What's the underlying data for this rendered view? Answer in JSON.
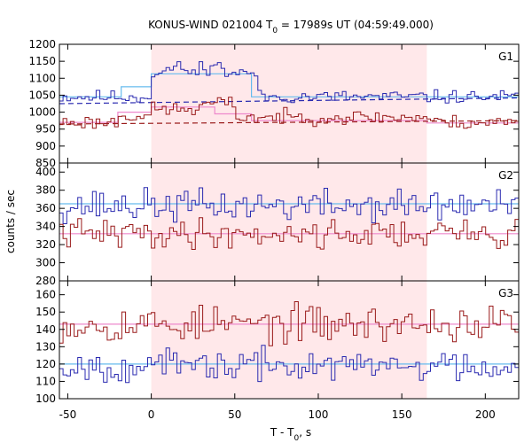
{
  "chart_data": {
    "type": "line",
    "title": {
      "main": "KONUS-WIND 021004 T",
      "sub": "0",
      "rest": " = 17989s UT (04:59:49.000)"
    },
    "xlabel": {
      "main": "T - T",
      "sub": "0",
      "rest": ", s"
    },
    "ylabel": "counts / sec",
    "xlim": [
      -55,
      220
    ],
    "xticks": [
      -50,
      0,
      50,
      100,
      150,
      200
    ],
    "highlight_interval": [
      0,
      165
    ],
    "colors": {
      "high_band": "#9a1b1b",
      "low_band": "#2a2ab0",
      "high_fit": "#ee88cc",
      "low_fit": "#66bbee",
      "shade": "#ffe8ea"
    },
    "panels": [
      {
        "label": "G1",
        "ylim": [
          850,
          1200
        ],
        "yticks": [
          850,
          900,
          950,
          1000,
          1050,
          1100,
          1150,
          1200
        ],
        "series": [
          {
            "seed": 11,
            "base": 1045,
            "noise": 12,
            "color_key": "low_band",
            "bumps": [
              {
                "t0": 0,
                "t1": 62,
                "amp": 70
              },
              {
                "t0": 8,
                "t1": 22,
                "amp": 15
              },
              {
                "t0": 28,
                "t1": 42,
                "amp": 20
              }
            ]
          },
          {
            "seed": 23,
            "base": 970,
            "noise": 13,
            "color_key": "high_band",
            "bumps": [
              {
                "t0": -20,
                "t1": 0,
                "amp": 20
              },
              {
                "t0": 0,
                "t1": 30,
                "amp": 38
              },
              {
                "t0": 30,
                "t1": 50,
                "amp": 55
              },
              {
                "t0": 50,
                "t1": 165,
                "amp": 15
              }
            ]
          }
        ],
        "fits": [
          {
            "color_key": "low_fit",
            "steps": [
              [
                -55,
                1045
              ],
              [
                -18,
                1045
              ],
              [
                -18,
                1075
              ],
              [
                0,
                1075
              ],
              [
                0,
                1113
              ],
              [
                60,
                1113
              ],
              [
                60,
                1045
              ],
              [
                220,
                1045
              ]
            ]
          },
          {
            "color_key": "high_fit",
            "steps": [
              [
                -55,
                970
              ],
              [
                -20,
                970
              ],
              [
                -20,
                1000
              ],
              [
                0,
                1000
              ],
              [
                0,
                1015
              ],
              [
                38,
                1015
              ],
              [
                38,
                995
              ],
              [
                60,
                995
              ],
              [
                60,
                975
              ],
              [
                165,
                975
              ],
              [
                165,
                968
              ],
              [
                220,
                968
              ]
            ]
          }
        ],
        "dashed": [
          {
            "color_key": "low_band",
            "x": [
              -55,
              220
            ],
            "y": [
              1025,
              1042
            ]
          },
          {
            "color_key": "high_band",
            "x": [
              -55,
              220
            ],
            "y": [
              965,
              975
            ]
          }
        ]
      },
      {
        "label": "G2",
        "ylim": [
          280,
          410
        ],
        "yticks": [
          280,
          300,
          320,
          340,
          360,
          380,
          400
        ],
        "series": [
          {
            "seed": 37,
            "base": 363,
            "noise": 11,
            "color_key": "low_band",
            "bumps": []
          },
          {
            "seed": 41,
            "base": 332,
            "noise": 10,
            "color_key": "high_band",
            "bumps": []
          }
        ],
        "fits": [
          {
            "color_key": "low_fit",
            "steps": [
              [
                -55,
                365
              ],
              [
                220,
                365
              ]
            ]
          },
          {
            "color_key": "high_fit",
            "steps": [
              [
                -55,
                332
              ],
              [
                220,
                332
              ]
            ]
          }
        ],
        "dashed": []
      },
      {
        "label": "G3",
        "ylim": [
          100,
          168
        ],
        "yticks": [
          100,
          110,
          120,
          130,
          140,
          150,
          160
        ],
        "series": [
          {
            "seed": 53,
            "base": 143,
            "noise": 6.5,
            "color_key": "high_band",
            "bumps": []
          },
          {
            "seed": 67,
            "base": 119,
            "noise": 5.5,
            "color_key": "low_band",
            "bumps": []
          }
        ],
        "fits": [
          {
            "color_key": "high_fit",
            "steps": [
              [
                -55,
                143
              ],
              [
                220,
                143
              ]
            ]
          },
          {
            "color_key": "low_fit",
            "steps": [
              [
                -55,
                120
              ],
              [
                220,
                120
              ]
            ]
          }
        ],
        "dashed": []
      }
    ]
  }
}
